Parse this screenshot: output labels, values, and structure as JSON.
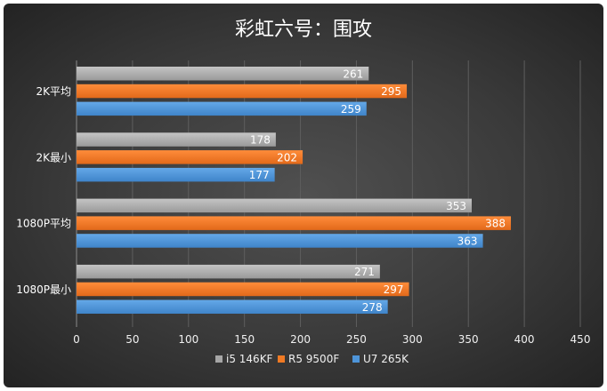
{
  "chart_data": {
    "type": "bar",
    "orientation": "horizontal",
    "title": "彩虹六号：围攻",
    "categories": [
      "2K平均",
      "2K最小",
      "1080P平均",
      "1080P最小"
    ],
    "series": [
      {
        "name": "i5 146KF",
        "color": "#a6a6a6",
        "values": [
          261,
          178,
          353,
          271
        ]
      },
      {
        "name": "R5 9500F",
        "color": "#f07a24",
        "values": [
          295,
          202,
          388,
          297
        ]
      },
      {
        "name": "U7 265K",
        "color": "#4e95d9",
        "values": [
          259,
          177,
          363,
          278
        ]
      }
    ],
    "xlim": [
      0,
      450
    ],
    "xticks": [
      0,
      50,
      100,
      150,
      200,
      250,
      300,
      350,
      400,
      450
    ],
    "grid": true,
    "legend": "bottom",
    "data_labels": true
  }
}
